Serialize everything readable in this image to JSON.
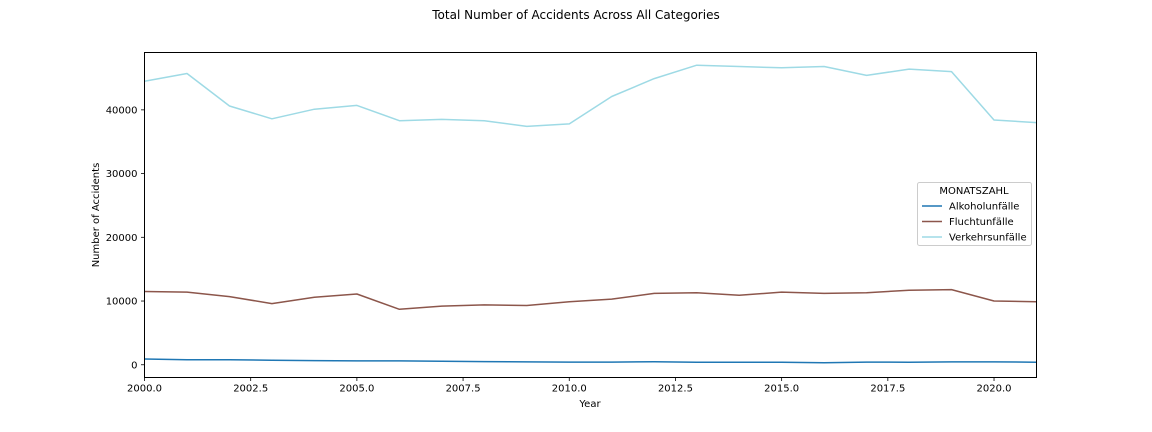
{
  "chart_data": {
    "type": "line",
    "title": "Total Number of Accidents Across All Categories",
    "xlabel": "Year",
    "ylabel": "Number of Accidents",
    "xlim": [
      2000,
      2021
    ],
    "ylim": [
      -2000,
      49000
    ],
    "xticks": [
      2000.0,
      2002.5,
      2005.0,
      2007.5,
      2010.0,
      2012.5,
      2015.0,
      2017.5,
      2020.0
    ],
    "xtick_labels": [
      "2000.0",
      "2002.5",
      "2005.0",
      "2007.5",
      "2010.0",
      "2012.5",
      "2015.0",
      "2017.5",
      "2020.0"
    ],
    "yticks": [
      0,
      10000,
      20000,
      30000,
      40000
    ],
    "ytick_labels": [
      "0",
      "10000",
      "20000",
      "30000",
      "40000"
    ],
    "grid": false,
    "legend": {
      "title": "MONATSZAHL",
      "placement": "center-right"
    },
    "x": [
      2000,
      2001,
      2002,
      2003,
      2004,
      2005,
      2006,
      2007,
      2008,
      2009,
      2010,
      2011,
      2012,
      2013,
      2014,
      2015,
      2016,
      2017,
      2018,
      2019,
      2020,
      2021
    ],
    "series": [
      {
        "name": "Alkoholunfälle",
        "color": "#1f77b4",
        "values": [
          900,
          800,
          780,
          720,
          650,
          600,
          600,
          560,
          500,
          450,
          420,
          420,
          480,
          400,
          380,
          400,
          300,
          420,
          400,
          450,
          450,
          400
        ]
      },
      {
        "name": "Fluchtunfälle",
        "color": "#8c564b",
        "values": [
          11500,
          11400,
          10700,
          9600,
          10600,
          11100,
          8700,
          9200,
          9400,
          9300,
          9900,
          10300,
          11200,
          11300,
          10900,
          11400,
          11200,
          11300,
          11700,
          11800,
          10000,
          9900
        ]
      },
      {
        "name": "Verkehrsunfälle",
        "color": "#9edae5",
        "values": [
          44500,
          45700,
          40600,
          38600,
          40100,
          40700,
          38300,
          38500,
          38300,
          37400,
          37800,
          42100,
          44900,
          47000,
          46800,
          46600,
          46800,
          45400,
          46400,
          46000,
          38400,
          38000
        ]
      }
    ]
  }
}
